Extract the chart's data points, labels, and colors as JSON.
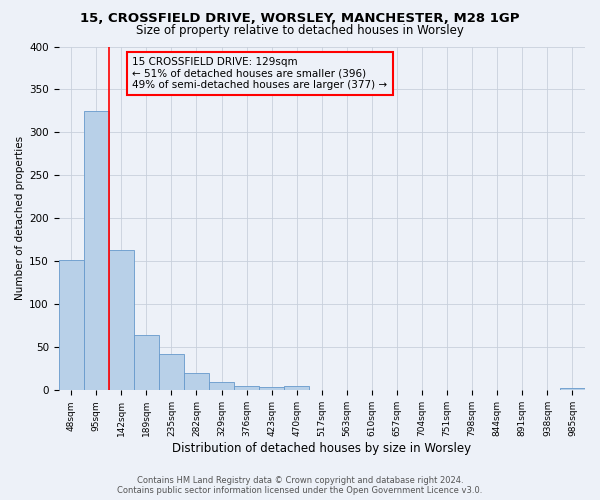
{
  "title1": "15, CROSSFIELD DRIVE, WORSLEY, MANCHESTER, M28 1GP",
  "title2": "Size of property relative to detached houses in Worsley",
  "xlabel": "Distribution of detached houses by size in Worsley",
  "ylabel": "Number of detached properties",
  "categories": [
    "48sqm",
    "95sqm",
    "142sqm",
    "189sqm",
    "235sqm",
    "282sqm",
    "329sqm",
    "376sqm",
    "423sqm",
    "470sqm",
    "517sqm",
    "563sqm",
    "610sqm",
    "657sqm",
    "704sqm",
    "751sqm",
    "798sqm",
    "844sqm",
    "891sqm",
    "938sqm",
    "985sqm"
  ],
  "values": [
    152,
    325,
    163,
    64,
    42,
    20,
    10,
    5,
    4,
    5,
    0,
    0,
    0,
    0,
    0,
    0,
    0,
    0,
    0,
    0,
    3
  ],
  "bar_color": "#b8d0e8",
  "bar_edge_color": "#6699cc",
  "grid_color": "#c8d0dc",
  "bg_color": "#edf1f8",
  "red_line_x": 1.5,
  "annotation_line1": "15 CROSSFIELD DRIVE: 129sqm",
  "annotation_line2": "← 51% of detached houses are smaller (396)",
  "annotation_line3": "49% of semi-detached houses are larger (377) →",
  "footer1": "Contains HM Land Registry data © Crown copyright and database right 2024.",
  "footer2": "Contains public sector information licensed under the Open Government Licence v3.0.",
  "ylim": [
    0,
    400
  ],
  "yticks": [
    0,
    50,
    100,
    150,
    200,
    250,
    300,
    350,
    400
  ]
}
